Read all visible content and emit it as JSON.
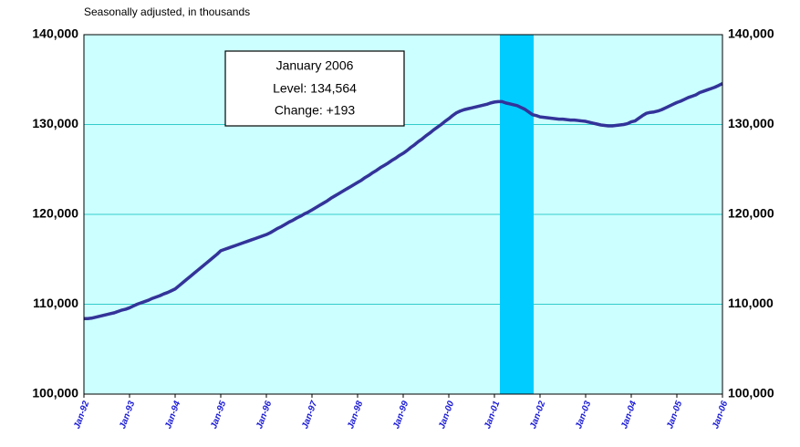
{
  "chart_data": {
    "type": "line",
    "subtitle": "Seasonally adjusted, in thousands",
    "annotation": [
      "January 2006",
      "Level: 134,564",
      "Change: +193"
    ],
    "categories": [
      "Jan-92",
      null,
      null,
      null,
      null,
      null,
      null,
      null,
      null,
      null,
      null,
      null,
      "Jan-93",
      null,
      null,
      null,
      null,
      null,
      null,
      null,
      null,
      null,
      null,
      null,
      "Jan-94",
      null,
      null,
      null,
      null,
      null,
      null,
      null,
      null,
      null,
      null,
      null,
      "Jan-95",
      null,
      null,
      null,
      null,
      null,
      null,
      null,
      null,
      null,
      null,
      null,
      "Jan-96",
      null,
      null,
      null,
      null,
      null,
      null,
      null,
      null,
      null,
      null,
      null,
      "Jan-97",
      null,
      null,
      null,
      null,
      null,
      null,
      null,
      null,
      null,
      null,
      null,
      "Jan-98",
      null,
      null,
      null,
      null,
      null,
      null,
      null,
      null,
      null,
      null,
      null,
      "Jan-99",
      null,
      null,
      null,
      null,
      null,
      null,
      null,
      null,
      null,
      null,
      null,
      "Jan-00",
      null,
      null,
      null,
      null,
      null,
      null,
      null,
      null,
      null,
      null,
      null,
      "Jan-01",
      null,
      null,
      null,
      null,
      null,
      null,
      null,
      null,
      null,
      null,
      null,
      "Jan-02",
      null,
      null,
      null,
      null,
      null,
      null,
      null,
      null,
      null,
      null,
      null,
      "Jan-03",
      null,
      null,
      null,
      null,
      null,
      null,
      null,
      null,
      null,
      null,
      null,
      "Jan-04",
      null,
      null,
      null,
      null,
      null,
      null,
      null,
      null,
      null,
      null,
      null,
      "Jan-05",
      null,
      null,
      null,
      null,
      null,
      null,
      null,
      null,
      null,
      null,
      null,
      "Jan-06"
    ],
    "series": [
      {
        "color": "#333399",
        "values": [
          108400,
          108400,
          108450,
          108550,
          108650,
          108750,
          108850,
          108950,
          109050,
          109200,
          109350,
          109450,
          109600,
          109800,
          110000,
          110150,
          110300,
          110450,
          110650,
          110800,
          110950,
          111150,
          111300,
          111500,
          111700,
          112050,
          112400,
          112750,
          113100,
          113450,
          113800,
          114150,
          114500,
          114850,
          115200,
          115550,
          115950,
          116100,
          116250,
          116400,
          116550,
          116700,
          116850,
          117000,
          117150,
          117300,
          117450,
          117600,
          117750,
          117950,
          118200,
          118450,
          118650,
          118900,
          119150,
          119350,
          119600,
          119800,
          120050,
          120250,
          120500,
          120750,
          121000,
          121250,
          121500,
          121800,
          122050,
          122300,
          122550,
          122800,
          123050,
          123300,
          123550,
          123800,
          124100,
          124350,
          124650,
          124900,
          125200,
          125450,
          125700,
          126000,
          126250,
          126550,
          126800,
          127100,
          127450,
          127750,
          128100,
          128400,
          128750,
          129050,
          129400,
          129700,
          130000,
          130350,
          130650,
          131000,
          131300,
          131500,
          131650,
          131750,
          131850,
          131950,
          132050,
          132150,
          132250,
          132400,
          132500,
          132550,
          132550,
          132400,
          132300,
          132200,
          132100,
          131900,
          131700,
          131400,
          131100,
          131000,
          130850,
          130800,
          130750,
          130700,
          130650,
          130600,
          130600,
          130550,
          130500,
          130500,
          130450,
          130400,
          130350,
          130250,
          130150,
          130050,
          129950,
          129900,
          129850,
          129850,
          129900,
          129950,
          130000,
          130100,
          130300,
          130400,
          130700,
          131000,
          131250,
          131350,
          131400,
          131500,
          131650,
          131850,
          132050,
          132250,
          132450,
          132600,
          132800,
          133000,
          133150,
          133300,
          133550,
          133700,
          133850,
          134000,
          134150,
          134350,
          134564
        ]
      }
    ],
    "ylim": [
      100000,
      140000
    ],
    "yticks": [
      {
        "value": 100000,
        "label": "100,000"
      },
      {
        "value": 110000,
        "label": "110,000"
      },
      {
        "value": 120000,
        "label": "120,000"
      },
      {
        "value": 130000,
        "label": "130,000"
      },
      {
        "value": 140000,
        "label": "140,000"
      }
    ],
    "grid": true,
    "background": "#ccffff",
    "grid_color": "#33cccc"
  }
}
